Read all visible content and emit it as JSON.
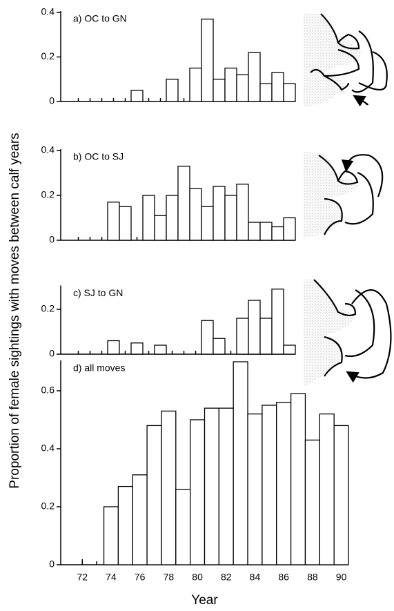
{
  "ylabel": "Proportion of female sightings with moves between calf years",
  "chart_data": [
    {
      "type": "bar",
      "title": "a) OC to GN",
      "x": [
        72,
        73,
        74,
        75,
        76,
        77,
        78,
        79,
        80,
        81,
        82,
        83,
        84,
        85,
        86,
        87,
        88,
        89,
        90
      ],
      "values": [
        null,
        null,
        null,
        null,
        null,
        0.05,
        null,
        null,
        0.1,
        null,
        0.15,
        0.37,
        0.1,
        0.15,
        0.12,
        0.22,
        0.08,
        0.13,
        0.08
      ],
      "xlim": [
        70.5,
        90.5
      ],
      "ylim": [
        0,
        0.4
      ],
      "yticks": [
        0,
        0.2,
        0.4
      ],
      "color": "#ffffff"
    },
    {
      "type": "bar",
      "title": "b) OC to SJ",
      "x": [
        72,
        73,
        74,
        75,
        76,
        77,
        78,
        79,
        80,
        81,
        82,
        83,
        84,
        85,
        86,
        87,
        88,
        89,
        90
      ],
      "values": [
        null,
        null,
        null,
        0.17,
        0.15,
        null,
        0.2,
        0.11,
        0.2,
        0.33,
        0.23,
        0.15,
        0.24,
        0.2,
        0.25,
        0.08,
        0.08,
        0.06,
        0.1
      ],
      "xlim": [
        70.5,
        90.5
      ],
      "ylim": [
        0,
        0.4
      ],
      "yticks": [
        0,
        0.2,
        0.4
      ],
      "color": "#ffffff"
    },
    {
      "type": "bar",
      "title": "c) SJ to GN",
      "x": [
        72,
        73,
        74,
        75,
        76,
        77,
        78,
        79,
        80,
        81,
        82,
        83,
        84,
        85,
        86,
        87,
        88,
        89,
        90
      ],
      "values": [
        null,
        null,
        null,
        0.06,
        null,
        0.05,
        null,
        0.04,
        null,
        null,
        null,
        0.15,
        0.07,
        null,
        0.16,
        0.24,
        0.16,
        0.29,
        0.04
      ],
      "xlim": [
        70.5,
        90.5
      ],
      "ylim": [
        0,
        0.3
      ],
      "yticks": [
        0,
        0.2
      ],
      "color": "#ffffff"
    },
    {
      "type": "bar",
      "title": "d) all moves",
      "xlabel": "Year",
      "x": [
        72,
        73,
        74,
        75,
        76,
        77,
        78,
        79,
        80,
        81,
        82,
        83,
        84,
        85,
        86,
        87,
        88,
        89,
        90
      ],
      "values": [
        null,
        null,
        0.2,
        0.27,
        0.31,
        0.48,
        0.53,
        0.26,
        0.5,
        0.54,
        0.54,
        0.7,
        0.52,
        0.55,
        0.56,
        0.59,
        0.43,
        0.52,
        0.48
      ],
      "xlim": [
        70.5,
        90.5
      ],
      "xticks": [
        72,
        74,
        76,
        78,
        80,
        82,
        84,
        86,
        88,
        90
      ],
      "ylim": [
        0,
        0.7
      ],
      "yticks": [
        0,
        0.2,
        0.4,
        0.6
      ],
      "color": "#ffffff"
    }
  ]
}
